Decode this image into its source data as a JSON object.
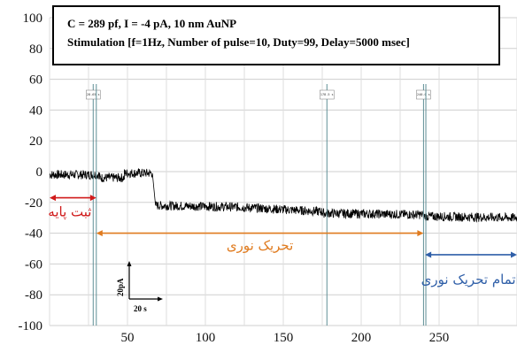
{
  "chart_data": {
    "type": "line",
    "info_box": {
      "line1": "C = 289 pf, I = -4 pA, 10 nm AuNP",
      "line2": "Stimulation [f=1Hz, Number of pulse=10, Duty=99, Delay=5000 msec]"
    },
    "xlim": [
      0,
      300
    ],
    "ylim": [
      -100,
      100
    ],
    "x_ticks": [
      50,
      100,
      150,
      200,
      250
    ],
    "y_ticks": [
      100,
      80,
      60,
      40,
      20,
      0,
      -20,
      -40,
      -60,
      -80,
      -100
    ],
    "grid": true,
    "series": [
      {
        "segments": [
          {
            "x": [
              0,
              32
            ],
            "y": [
              -2,
              -2
            ]
          },
          {
            "x": [
              32,
              48
            ],
            "y": [
              -4,
              -4
            ]
          },
          {
            "x": [
              48,
              66
            ],
            "y": [
              -1,
              -1
            ]
          },
          {
            "x": [
              66,
              68
            ],
            "y": [
              -1,
              -22
            ]
          },
          {
            "x": [
              68,
              120
            ],
            "y": [
              -22,
              -23
            ]
          },
          {
            "x": [
              120,
              175
            ],
            "y": [
              -23,
              -26
            ]
          },
          {
            "x": [
              175,
              240
            ],
            "y": [
              -27,
              -28
            ]
          },
          {
            "x": [
              240,
              300
            ],
            "y": [
              -29,
              -30
            ]
          }
        ],
        "noise_amplitude": 3,
        "color": "#000000"
      }
    ],
    "cursors": [
      {
        "x": 28,
        "label": "28.65 s"
      },
      {
        "x": 30,
        "label": ""
      },
      {
        "x": 178,
        "label": "178.5 s"
      },
      {
        "x": 240,
        "label": "240.0 s"
      },
      {
        "x": 241.5,
        "label": ""
      }
    ],
    "annotations": [
      {
        "text": "ثبت پایه",
        "color": "#d01a1a",
        "arrow_x": [
          0,
          30
        ],
        "arrow_y": -17,
        "text_x": 13,
        "text_y": -29
      },
      {
        "text": "تحریک نوری",
        "color": "#e07b1f",
        "arrow_x": [
          30,
          240
        ],
        "arrow_y": -40,
        "text_x": 135,
        "text_y": -51
      },
      {
        "text": "اتمام تحریک نوری",
        "color": "#2f5fa8",
        "arrow_x": [
          241,
          300
        ],
        "arrow_y": -54,
        "text_x": 270,
        "text_y": -73
      }
    ],
    "scale_bar": {
      "y_label": "20pA",
      "x_label": "20 s"
    }
  }
}
